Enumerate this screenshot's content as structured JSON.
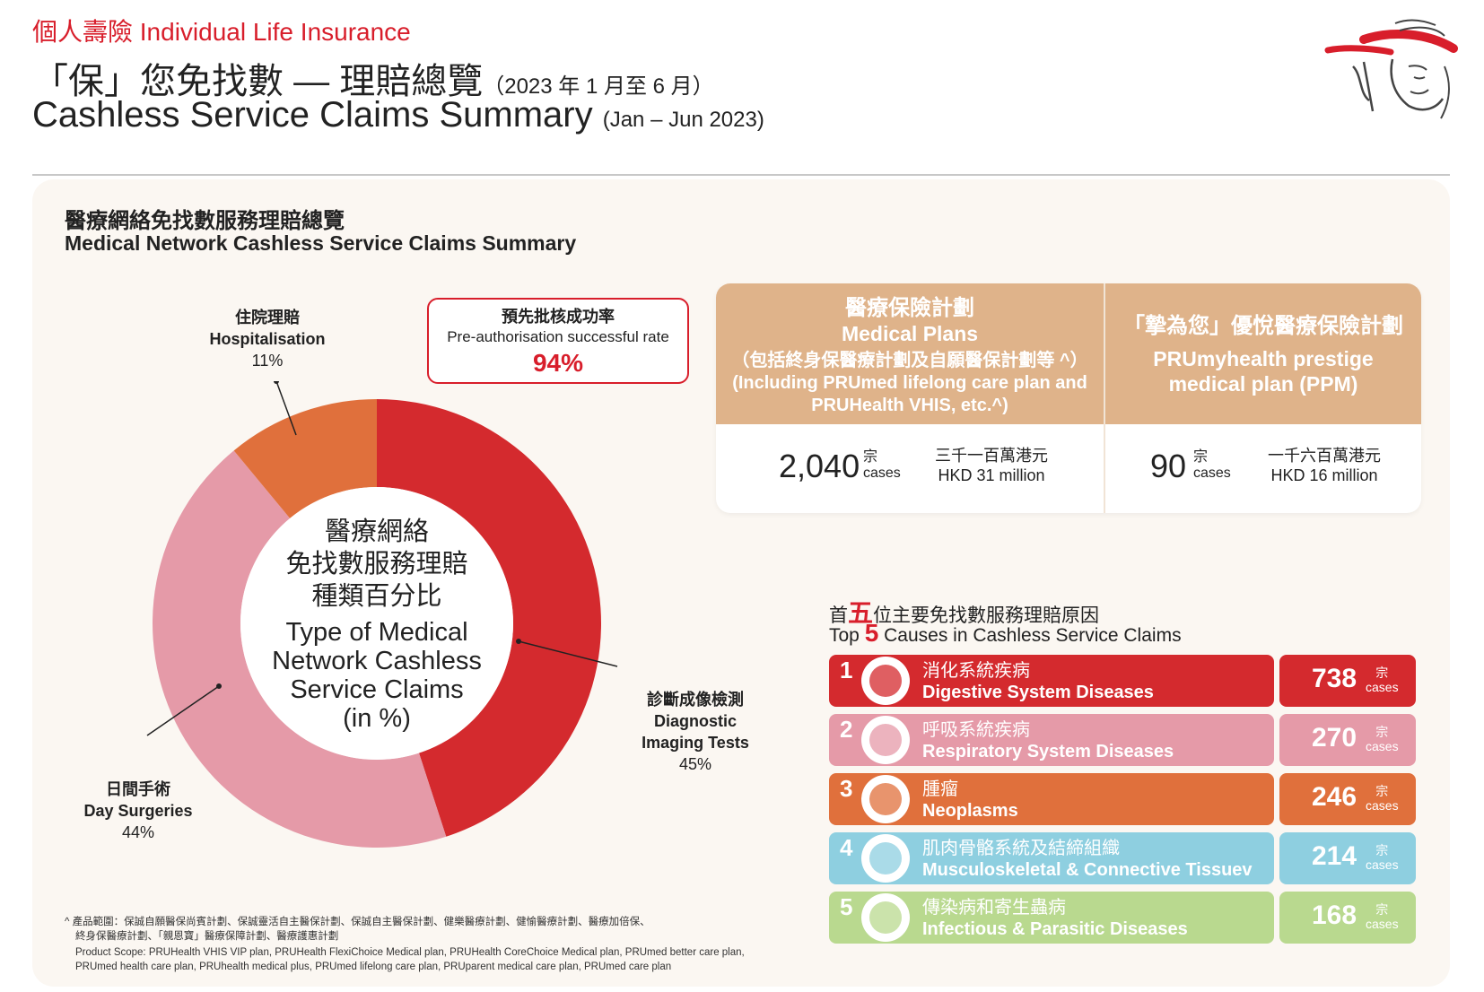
{
  "header": {
    "brand_line": "個人壽險 Individual Life Insurance",
    "title_cn": "「保」您免找數 — 理賠總覽",
    "title_cn_period": "（2023 年 1 月至 6 月）",
    "title_en": "Cashless Service Claims Summary",
    "title_en_period": "(Jan – Jun 2023)"
  },
  "section": {
    "title_cn": "醫療網絡免找數服務理賠總覽",
    "title_en": "Medical Network Cashless Service Claims Summary"
  },
  "preauth": {
    "label_cn": "預先批核成功率",
    "label_en": "Pre-authorisation successful rate",
    "value": "94%"
  },
  "chart_data": {
    "type": "pie",
    "donut": true,
    "center_cn_1": "醫療網絡",
    "center_cn_2": "免找數服務理賠",
    "center_cn_3": "種類百分比",
    "center_en_1": "Type of Medical",
    "center_en_2": "Network Cashless",
    "center_en_3": "Service Claims",
    "center_en_4": "(in %)",
    "slices": [
      {
        "label_cn": "診斷成像檢測",
        "label_en_1": "Diagnostic",
        "label_en_2": "Imaging Tests",
        "value": 45,
        "pct": "45%",
        "color": "#d42a2e"
      },
      {
        "label_cn": "日間手術",
        "label_en": "Day Surgeries",
        "value": 44,
        "pct": "44%",
        "color": "#e59aa8"
      },
      {
        "label_cn": "住院理賠",
        "label_en": "Hospitalisation",
        "value": 11,
        "pct": "11%",
        "color": "#e0703c"
      }
    ]
  },
  "plans": [
    {
      "name_cn": "醫療保險計劃",
      "name_en": "Medical Plans",
      "sub_cn": "（包括終身保醫療計劃及自願醫保計劃等 ^）",
      "sub_en_1": "(Including PRUmed lifelong care plan and",
      "sub_en_2": "PRUHealth VHIS, etc.^)",
      "cases": "2,040",
      "unit_cn": "宗",
      "unit_en": "cases",
      "amount_cn": "三千一百萬港元",
      "amount_en": "HKD 31 million"
    },
    {
      "name_cn": "「摯為您」優悅醫療保險計劃",
      "name_en_1": "PRUmyhealth prestige",
      "name_en_2": "medical plan (PPM)",
      "cases": "90",
      "unit_cn": "宗",
      "unit_en": "cases",
      "amount_cn": "一千六百萬港元",
      "amount_en": "HKD 16 million"
    }
  ],
  "top5": {
    "title_cn_a": "首",
    "title_cn_b": "五",
    "title_cn_c": "位主要免找數服務理賠原因",
    "title_en_a": "Top ",
    "title_en_b": "5",
    "title_en_c": " Causes in Cashless Service Claims",
    "items": [
      {
        "rank": "1",
        "cn": "消化系統疾病",
        "en": "Digestive System Diseases",
        "count": "738",
        "unit_cn": "宗",
        "unit_en": "cases",
        "color": "#d42a2e",
        "icon": "stomach-icon"
      },
      {
        "rank": "2",
        "cn": "呼吸系統疾病",
        "en": "Respiratory System Diseases",
        "count": "270",
        "unit_cn": "宗",
        "unit_en": "cases",
        "color": "#e59aa8",
        "icon": "lungs-icon"
      },
      {
        "rank": "3",
        "cn": "腫瘤",
        "en": "Neoplasms",
        "count": "246",
        "unit_cn": "宗",
        "unit_en": "cases",
        "color": "#e0703c",
        "icon": "cell-icon"
      },
      {
        "rank": "4",
        "cn": "肌肉骨骼系統及結締組織",
        "en": "Musculoskeletal & Connective Tissuev",
        "count": "214",
        "unit_cn": "宗",
        "unit_en": "cases",
        "color": "#8ecfe0",
        "icon": "bone-icon"
      },
      {
        "rank": "5",
        "cn": "傳染病和寄生蟲病",
        "en": "Infectious & Parasitic Diseases",
        "count": "168",
        "unit_cn": "宗",
        "unit_en": "cases",
        "color": "#b9d98f",
        "icon": "virus-icon"
      }
    ]
  },
  "footnote": {
    "line1": "^  產品範圍：保誠自願醫保尚賓計劃、保誠靈活自主醫保計劃、保誠自主醫保計劃、健樂醫療計劃、健愉醫療計劃、醫療加倍保、",
    "line2": "終身保醫療計劃、「親恩寶」醫療保障計劃、醫療護惠計劃",
    "line3": "Product Scope: PRUHealth VHIS VIP plan, PRUHealth FlexiChoice Medical plan, PRUHealth CoreChoice Medical plan, PRUmed better care plan,",
    "line4": "PRUmed health care plan, PRUhealth medical plus, PRUmed lifelong care plan, PRUparent medical care plan, PRUmed care plan"
  }
}
